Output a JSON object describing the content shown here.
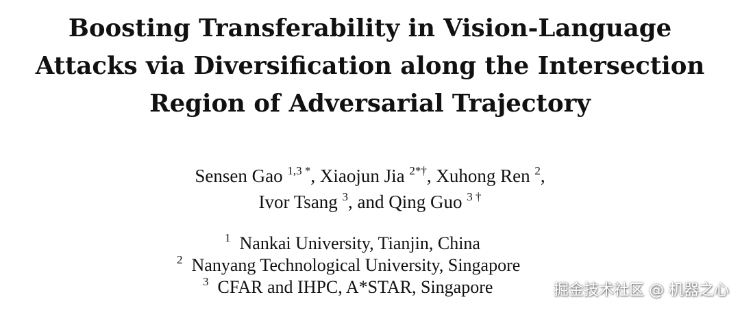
{
  "paper": {
    "title_lines": [
      "Boosting Transferability in Vision-Language",
      "Attacks via Diversification along the Intersection",
      "Region of Adversarial Trajectory"
    ],
    "authors": [
      {
        "name": "Sensen Gao",
        "sup": "1,3 *",
        "sep": ","
      },
      {
        "name": "Xiaojun Jia",
        "sup": "2*†",
        "sep": ","
      },
      {
        "name": "Xuhong Ren",
        "sup": "2",
        "sep": ","
      },
      {
        "name": "Ivor Tsang",
        "sup": "3",
        "sep": ", and"
      },
      {
        "name": "Qing Guo",
        "sup": "3 †",
        "sep": ""
      }
    ],
    "affiliations": [
      {
        "num": "1",
        "text": "Nankai University, Tianjin, China"
      },
      {
        "num": "2",
        "text": "Nanyang Technological University, Singapore"
      },
      {
        "num": "3",
        "text": "CFAR and IHPC, A*STAR, Singapore"
      }
    ]
  },
  "watermark": {
    "text": "掘金技术社区 @ 机器之心"
  }
}
